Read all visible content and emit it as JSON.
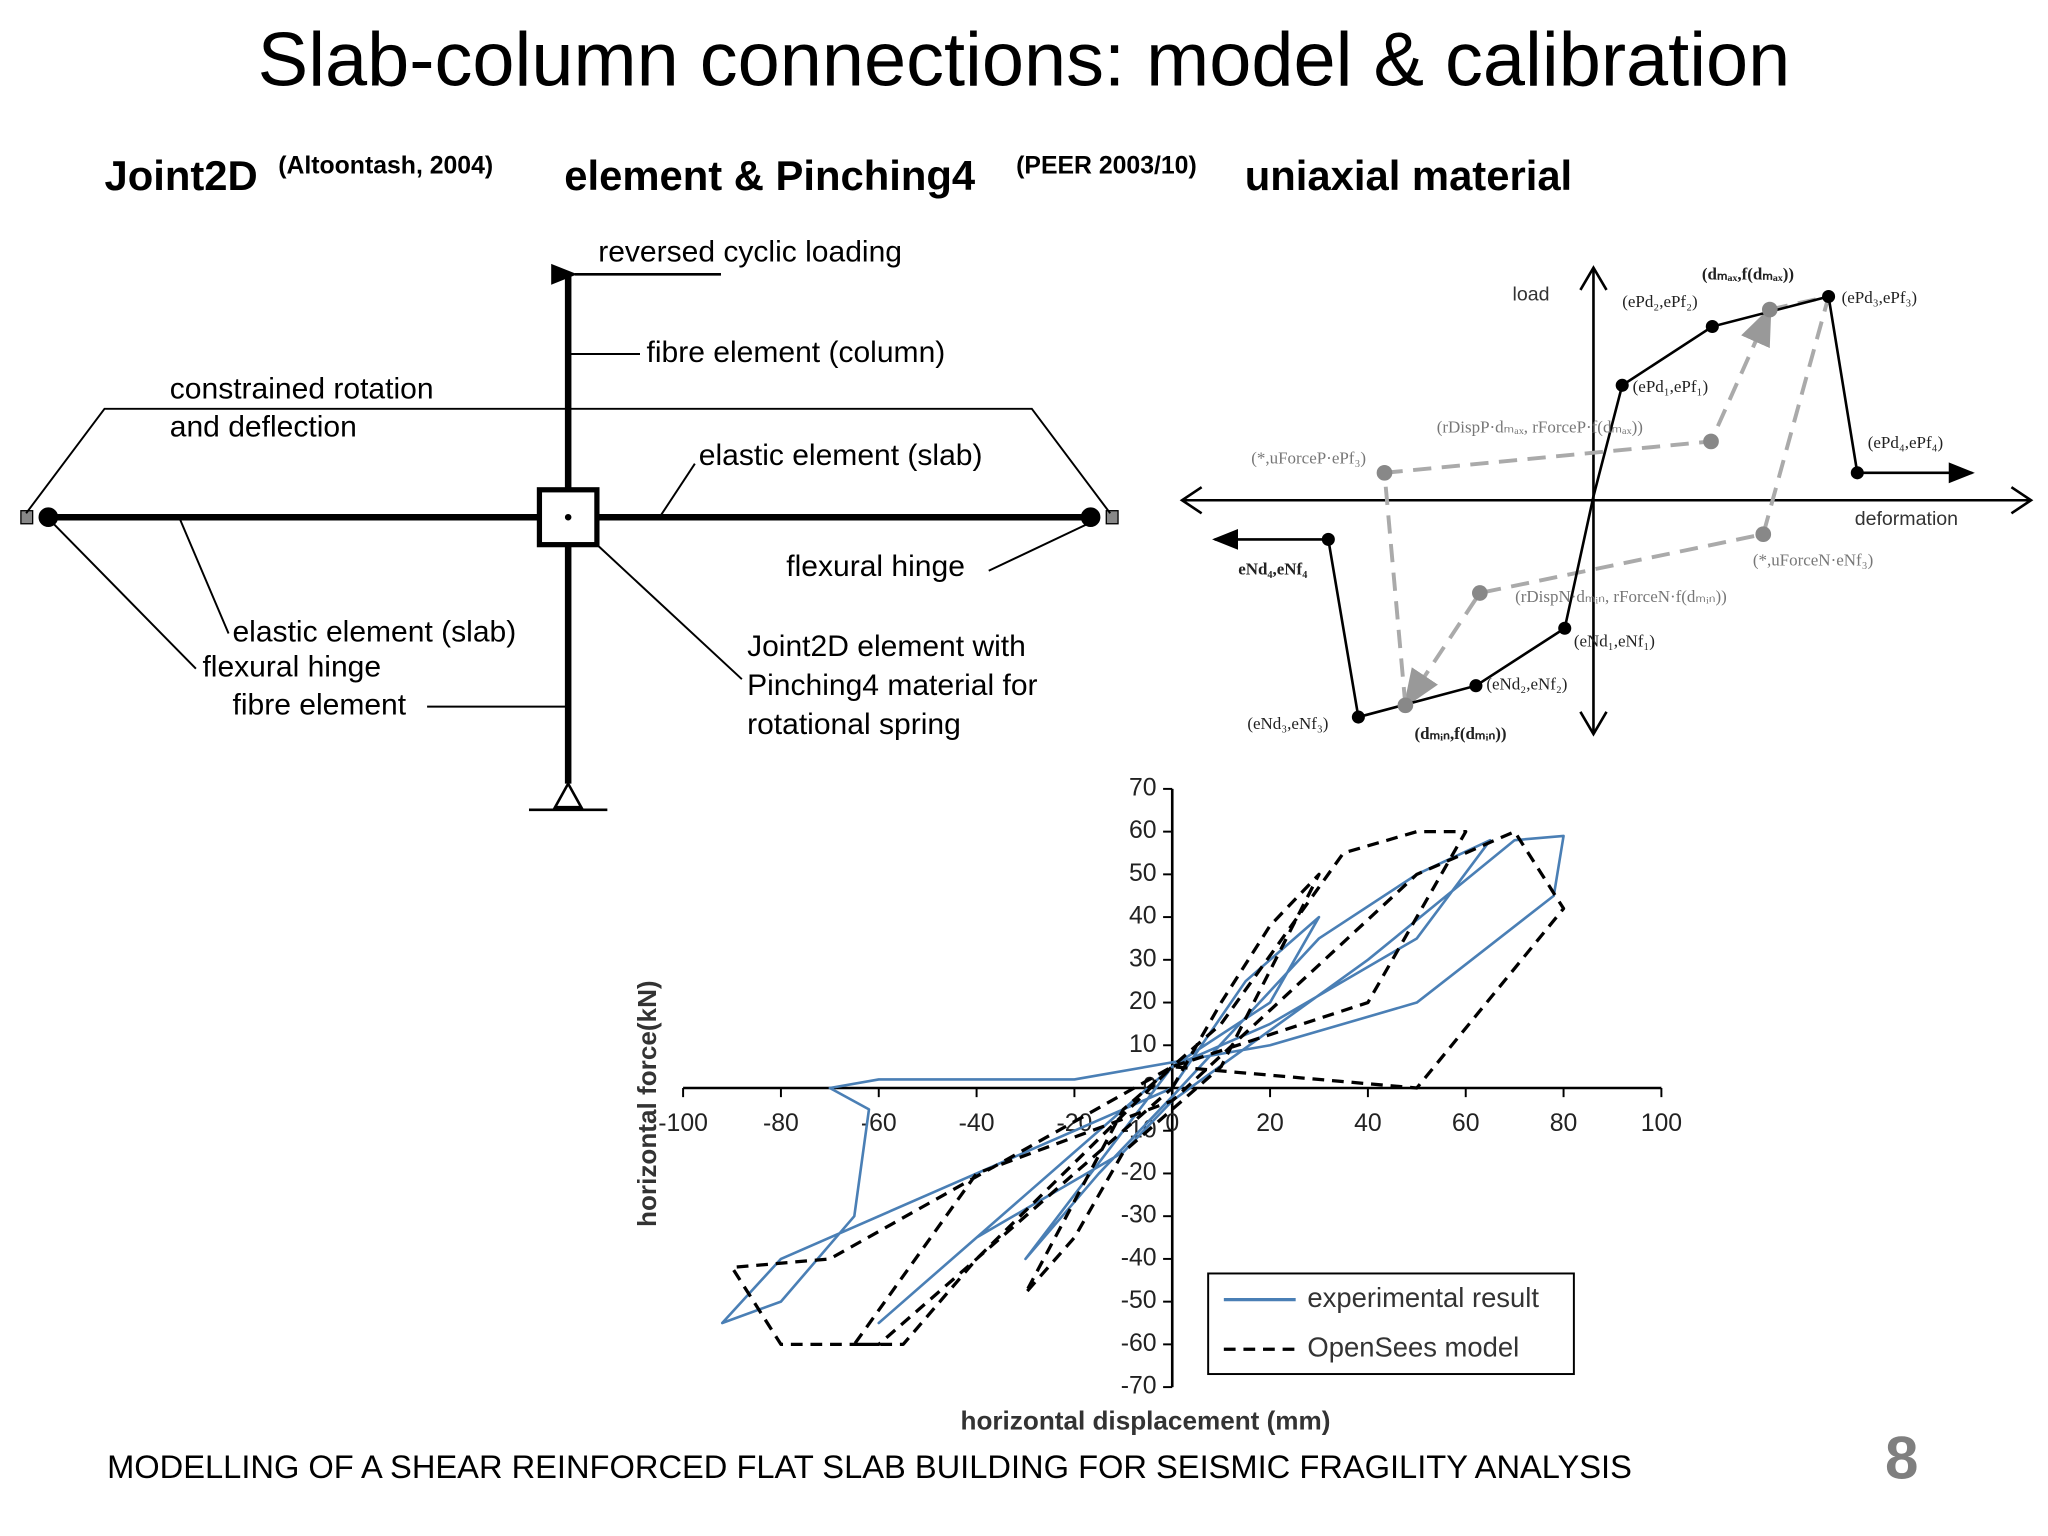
{
  "header": {
    "title": "Slab-column connections: model & calibration",
    "subtitle": [
      "Joint2D",
      "(Altoontash, 2004)",
      "element & Pinching4",
      "(PEER 2003/10)",
      "uniaxial material"
    ]
  },
  "model_diagram": {
    "labels": [
      "reversed cyclic loading",
      "fibre element (column)",
      "constrained rotation",
      "and deflection",
      "elastic element (slab)",
      "flexural hinge",
      "elastic element (slab)",
      "flexural hinge",
      "fibre element",
      "Joint2D element with",
      "Pinching4 material for",
      "rotational spring"
    ]
  },
  "pinching_diagram": {
    "axis_labels": [
      "load",
      "deformation"
    ],
    "labels": [
      "(dₘₐₓ,f(dₘₐₓ))",
      "(ePd₂,ePf₂)",
      "(ePd₃,ePf₃)",
      "(ePd₁,ePf₁)",
      "(rDispP·dₘₐₓ, rForceP·f(dₘₐₓ))",
      "(ePd₄,ePf₄)",
      "(*,uForceP·ePf₃)",
      "eNd₄,eNf₄",
      "(*,uForceN·eNf₃)",
      "(rDispN·dₘᵢₙ, rForceN·f(dₘᵢₙ))",
      "(eNd₁,eNf₁)",
      "(eNd₂,eNf₂)",
      "(eNd₃,eNf₃)",
      "(dₘᵢₙ,f(dₘᵢₙ))"
    ]
  },
  "chart_data": {
    "type": "line",
    "x_label": "horizontal displacement (mm)",
    "y_label": "horizontal force(kN)",
    "xlim": [
      -100,
      100
    ],
    "ylim": [
      -70,
      70
    ],
    "xticks": [
      -100,
      -80,
      -60,
      -40,
      -20,
      0,
      20,
      40,
      60,
      80,
      100
    ],
    "yticks": [
      -70,
      -60,
      -50,
      -40,
      -30,
      -20,
      -10,
      0,
      10,
      20,
      30,
      40,
      50,
      60,
      70
    ],
    "series": [
      {
        "name": "experimental result",
        "color": "#4a7fb5",
        "x": [
          0,
          15,
          30,
          20,
          0,
          -20,
          -30,
          -15,
          0,
          30,
          50,
          65,
          50,
          20,
          0,
          -30,
          -50,
          -60,
          -40,
          -10,
          0,
          40,
          70,
          80,
          78,
          50,
          20,
          -20,
          -60,
          -70,
          -62,
          -65,
          -80,
          -92,
          -80,
          -40,
          0
        ],
        "values": [
          0,
          25,
          40,
          20,
          5,
          -25,
          -40,
          -20,
          -2,
          35,
          50,
          58,
          35,
          15,
          5,
          -25,
          -45,
          -55,
          -35,
          -15,
          -3,
          30,
          58,
          59,
          45,
          20,
          10,
          2,
          2,
          0,
          -5,
          -30,
          -50,
          -55,
          -40,
          -20,
          0
        ]
      },
      {
        "name": "OpenSees model",
        "color": "#000000",
        "x": [
          0,
          10,
          20,
          30,
          10,
          -10,
          -20,
          -30,
          -10,
          10,
          35,
          50,
          60,
          40,
          0,
          -40,
          -55,
          -65,
          -40,
          0,
          50,
          70,
          80,
          50,
          0,
          -70,
          -90,
          -80,
          -60,
          -20,
          0
        ],
        "values": [
          0,
          20,
          38,
          50,
          5,
          -15,
          -35,
          -48,
          -5,
          15,
          55,
          60,
          60,
          20,
          5,
          -40,
          -60,
          -60,
          -20,
          -3,
          50,
          60,
          42,
          0,
          5,
          -40,
          -42,
          -60,
          -60,
          -20,
          0
        ]
      }
    ]
  },
  "footer": {
    "text": "MODELLING OF A SHEAR REINFORCED FLAT SLAB BUILDING FOR SEISMIC FRAGILITY ANALYSIS",
    "page": "8"
  }
}
